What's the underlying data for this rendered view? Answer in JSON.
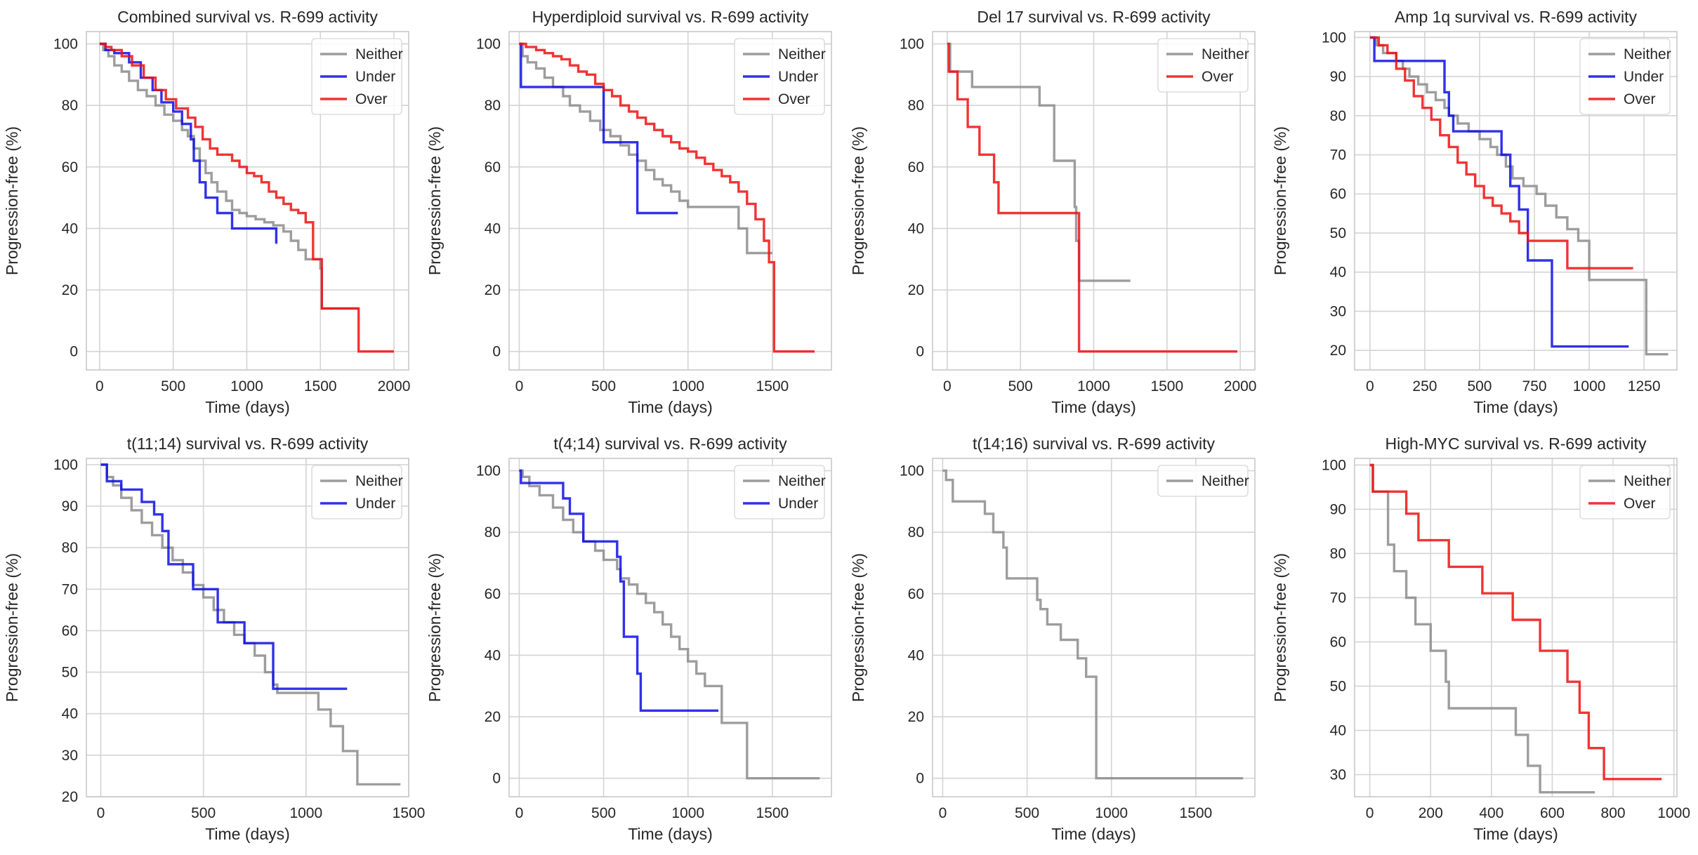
{
  "colors": {
    "Neither": "#8c8c8c",
    "Under": "#0d0de6",
    "Over": "#ee1111"
  },
  "chart_data": [
    {
      "type": "line",
      "title": "Combined survival vs. R-699 activity",
      "xlabel": "Time (days)",
      "ylabel": "Progression-free (%)",
      "xlim": [
        -90,
        2100
      ],
      "ylim": [
        -6,
        104
      ],
      "xticks": [
        0,
        500,
        1000,
        1500,
        2000
      ],
      "yticks": [
        0,
        20,
        40,
        60,
        80,
        100
      ],
      "series": [
        {
          "name": "Neither",
          "x": [
            0,
            25,
            60,
            100,
            150,
            200,
            260,
            320,
            380,
            440,
            500,
            560,
            600,
            640,
            680,
            720,
            760,
            800,
            860,
            900,
            950,
            1000,
            1060,
            1120,
            1180,
            1250,
            1300,
            1350,
            1400,
            1450,
            1500,
            1510,
            1760
          ],
          "y": [
            100,
            98,
            96,
            93,
            91,
            88,
            85,
            83,
            80,
            77,
            75,
            72,
            70,
            66,
            62,
            58,
            55,
            52,
            49,
            46,
            45,
            44,
            43,
            42,
            41,
            39,
            36,
            33,
            30,
            30,
            27,
            14,
            14
          ]
        },
        {
          "name": "Under",
          "x": [
            0,
            40,
            100,
            200,
            280,
            360,
            420,
            500,
            560,
            620,
            640,
            680,
            720,
            800,
            900,
            1000,
            1200
          ],
          "y": [
            100,
            98,
            97,
            94,
            89,
            85,
            81,
            78,
            74,
            69,
            62,
            55,
            50,
            45,
            40,
            40,
            35
          ]
        },
        {
          "name": "Over",
          "x": [
            0,
            40,
            80,
            150,
            220,
            300,
            380,
            450,
            520,
            600,
            650,
            700,
            750,
            800,
            900,
            950,
            1000,
            1050,
            1100,
            1150,
            1200,
            1250,
            1300,
            1350,
            1400,
            1450,
            1510,
            1750,
            1760,
            2000
          ],
          "y": [
            100,
            99,
            98,
            96,
            93,
            89,
            85,
            82,
            79,
            76,
            73,
            69,
            66,
            64,
            62,
            60,
            58,
            57,
            55,
            52,
            50,
            48,
            46,
            45,
            42,
            30,
            14,
            14,
            0,
            0
          ]
        }
      ]
    },
    {
      "type": "line",
      "title": "Hyperdiploid survival vs. R-699 activity",
      "xlabel": "Time (days)",
      "ylabel": "Progression-free (%)",
      "xlim": [
        -60,
        1850
      ],
      "ylim": [
        -6,
        104
      ],
      "xticks": [
        0,
        500,
        1000,
        1500
      ],
      "yticks": [
        0,
        20,
        40,
        60,
        80,
        100
      ],
      "series": [
        {
          "name": "Neither",
          "x": [
            0,
            20,
            50,
            100,
            150,
            200,
            260,
            300,
            360,
            420,
            480,
            540,
            600,
            650,
            700,
            750,
            800,
            850,
            900,
            950,
            1000,
            1100,
            1300,
            1350,
            1500
          ],
          "y": [
            100,
            96,
            94,
            92,
            89,
            86,
            83,
            80,
            78,
            75,
            72,
            70,
            67,
            64,
            62,
            59,
            56,
            54,
            52,
            49,
            47,
            47,
            40,
            32,
            32
          ]
        },
        {
          "name": "Under",
          "x": [
            0,
            10,
            500,
            700,
            940
          ],
          "y": [
            100,
            86,
            68,
            45,
            45
          ]
        },
        {
          "name": "Over",
          "x": [
            0,
            40,
            100,
            150,
            200,
            250,
            300,
            350,
            400,
            450,
            500,
            550,
            600,
            650,
            700,
            750,
            800,
            850,
            900,
            950,
            1000,
            1050,
            1100,
            1150,
            1200,
            1250,
            1300,
            1350,
            1400,
            1450,
            1480,
            1510,
            1750
          ],
          "y": [
            100,
            99,
            98,
            97,
            96,
            95,
            93,
            91,
            90,
            87,
            85,
            83,
            80,
            78,
            76,
            74,
            72,
            70,
            68,
            66,
            65,
            63,
            61,
            59,
            57,
            55,
            52,
            48,
            43,
            36,
            29,
            0,
            0
          ]
        }
      ]
    },
    {
      "type": "line",
      "title": "Del 17 survival vs. R-699 activity",
      "xlabel": "Time (days)",
      "ylabel": "Progression-free (%)",
      "xlim": [
        -100,
        2100
      ],
      "ylim": [
        -6,
        104
      ],
      "xticks": [
        0,
        500,
        1000,
        1500,
        2000
      ],
      "yticks": [
        0,
        20,
        40,
        60,
        80,
        100
      ],
      "series": [
        {
          "name": "Neither",
          "x": [
            0,
            20,
            170,
            580,
            630,
            730,
            870,
            880,
            900,
            1250
          ],
          "y": [
            100,
            91,
            86,
            86,
            80,
            62,
            47,
            36,
            23,
            23
          ]
        },
        {
          "name": "Over",
          "x": [
            0,
            10,
            70,
            140,
            220,
            320,
            350,
            880,
            900,
            1980
          ],
          "y": [
            100,
            91,
            82,
            73,
            64,
            55,
            45,
            45,
            0,
            0
          ]
        }
      ]
    },
    {
      "type": "line",
      "title": "Amp 1q survival vs. R-699 activity",
      "xlabel": "Time (days)",
      "ylabel": "Progression-free (%)",
      "xlim": [
        -70,
        1400
      ],
      "ylim": [
        15,
        101.5
      ],
      "xticks": [
        0,
        250,
        500,
        750,
        1000,
        1250
      ],
      "yticks": [
        20,
        30,
        40,
        50,
        60,
        70,
        80,
        90,
        100
      ],
      "series": [
        {
          "name": "Neither",
          "x": [
            0,
            30,
            60,
            120,
            150,
            180,
            220,
            260,
            300,
            340,
            360,
            400,
            450,
            500,
            550,
            580,
            620,
            650,
            700,
            760,
            800,
            850,
            900,
            950,
            1000,
            1250,
            1260,
            1360
          ],
          "y": [
            100,
            98,
            96,
            94,
            92,
            90,
            88,
            86,
            84,
            82,
            80,
            78,
            76,
            74,
            72,
            70,
            67,
            64,
            62,
            60,
            57,
            54,
            51,
            48,
            38,
            38,
            19,
            19
          ]
        },
        {
          "name": "Under",
          "x": [
            0,
            20,
            130,
            340,
            360,
            380,
            570,
            600,
            640,
            680,
            720,
            830,
            1180
          ],
          "y": [
            100,
            94,
            94,
            86,
            80,
            76,
            76,
            70,
            62,
            56,
            43,
            21,
            21
          ]
        },
        {
          "name": "Over",
          "x": [
            0,
            40,
            80,
            120,
            160,
            200,
            240,
            280,
            320,
            360,
            400,
            440,
            480,
            520,
            560,
            600,
            640,
            680,
            720,
            900,
            1200
          ],
          "y": [
            100,
            98,
            96,
            92,
            89,
            85,
            82,
            79,
            75,
            72,
            68,
            65,
            62,
            59,
            57,
            55,
            53,
            50,
            48,
            41,
            41
          ]
        }
      ]
    },
    {
      "type": "line",
      "title": "t(11;14) survival vs. R-699 activity",
      "xlabel": "Time (days)",
      "ylabel": "Progression-free (%)",
      "xlim": [
        -70,
        1500
      ],
      "ylim": [
        20,
        101.5
      ],
      "xticks": [
        0,
        500,
        1000,
        1500
      ],
      "yticks": [
        20,
        30,
        40,
        50,
        60,
        70,
        80,
        90,
        100
      ],
      "series": [
        {
          "name": "Neither",
          "x": [
            0,
            30,
            60,
            100,
            150,
            200,
            250,
            300,
            350,
            400,
            450,
            500,
            550,
            600,
            650,
            700,
            750,
            800,
            840,
            860,
            1000,
            1060,
            1120,
            1180,
            1250,
            1460
          ],
          "y": [
            100,
            97,
            95,
            92,
            89,
            86,
            83,
            80,
            77,
            74,
            71,
            68,
            65,
            62,
            59,
            57,
            54,
            50,
            47,
            45,
            45,
            41,
            37,
            31,
            23,
            23
          ]
        },
        {
          "name": "Under",
          "x": [
            0,
            30,
            100,
            200,
            260,
            300,
            330,
            420,
            450,
            560,
            570,
            670,
            700,
            830,
            840,
            1200
          ],
          "y": [
            100,
            96,
            94,
            91,
            88,
            84,
            76,
            76,
            70,
            70,
            62,
            62,
            57,
            57,
            46,
            46
          ]
        }
      ]
    },
    {
      "type": "line",
      "title": "t(4;14) survival vs. R-699 activity",
      "xlabel": "Time (days)",
      "ylabel": "Progression-free (%)",
      "xlim": [
        -60,
        1850
      ],
      "ylim": [
        -6,
        104
      ],
      "xticks": [
        0,
        500,
        1000,
        1500
      ],
      "yticks": [
        0,
        20,
        40,
        60,
        80,
        100
      ],
      "series": [
        {
          "name": "Neither",
          "x": [
            0,
            20,
            60,
            120,
            200,
            260,
            320,
            380,
            450,
            500,
            580,
            600,
            650,
            700,
            750,
            800,
            850,
            900,
            950,
            1000,
            1050,
            1100,
            1200,
            1350,
            1780
          ],
          "y": [
            100,
            98,
            95,
            92,
            88,
            84,
            80,
            77,
            74,
            71,
            68,
            65,
            63,
            60,
            57,
            54,
            50,
            46,
            42,
            38,
            34,
            30,
            18,
            0,
            0
          ]
        },
        {
          "name": "Under",
          "x": [
            0,
            10,
            260,
            300,
            380,
            580,
            600,
            620,
            700,
            720,
            1180
          ],
          "y": [
            100,
            96,
            91,
            86,
            77,
            72,
            64,
            46,
            34,
            22,
            22
          ]
        }
      ]
    },
    {
      "type": "line",
      "title": "t(14;16) survival vs. R-699 activity",
      "xlabel": "Time (days)",
      "ylabel": "Progression-free (%)",
      "xlim": [
        -60,
        1850
      ],
      "ylim": [
        -6,
        104
      ],
      "xticks": [
        0,
        500,
        1000,
        1500
      ],
      "yticks": [
        0,
        20,
        40,
        60,
        80,
        100
      ],
      "series": [
        {
          "name": "Neither",
          "x": [
            0,
            20,
            60,
            150,
            250,
            300,
            360,
            380,
            420,
            560,
            580,
            620,
            700,
            800,
            850,
            890,
            910,
            1780
          ],
          "y": [
            100,
            97,
            90,
            90,
            86,
            80,
            75,
            65,
            65,
            58,
            55,
            50,
            45,
            39,
            33,
            33,
            0,
            0
          ]
        }
      ]
    },
    {
      "type": "line",
      "title": "High-MYC survival vs. R-699 activity",
      "xlabel": "Time (days)",
      "ylabel": "Progression-free (%)",
      "xlim": [
        -50,
        1010
      ],
      "ylim": [
        25,
        101.5
      ],
      "xticks": [
        0,
        200,
        400,
        600,
        800,
        1000
      ],
      "yticks": [
        30,
        40,
        50,
        60,
        70,
        80,
        90,
        100
      ],
      "series": [
        {
          "name": "Neither",
          "x": [
            0,
            10,
            60,
            80,
            120,
            150,
            200,
            250,
            260,
            460,
            480,
            520,
            560,
            740
          ],
          "y": [
            100,
            94,
            82,
            76,
            70,
            64,
            58,
            51,
            45,
            45,
            39,
            32,
            26,
            26
          ]
        },
        {
          "name": "Over",
          "x": [
            0,
            10,
            120,
            160,
            260,
            370,
            470,
            560,
            650,
            690,
            720,
            770,
            960
          ],
          "y": [
            100,
            94,
            89,
            83,
            77,
            71,
            65,
            58,
            51,
            44,
            36,
            29,
            29
          ]
        }
      ]
    }
  ]
}
